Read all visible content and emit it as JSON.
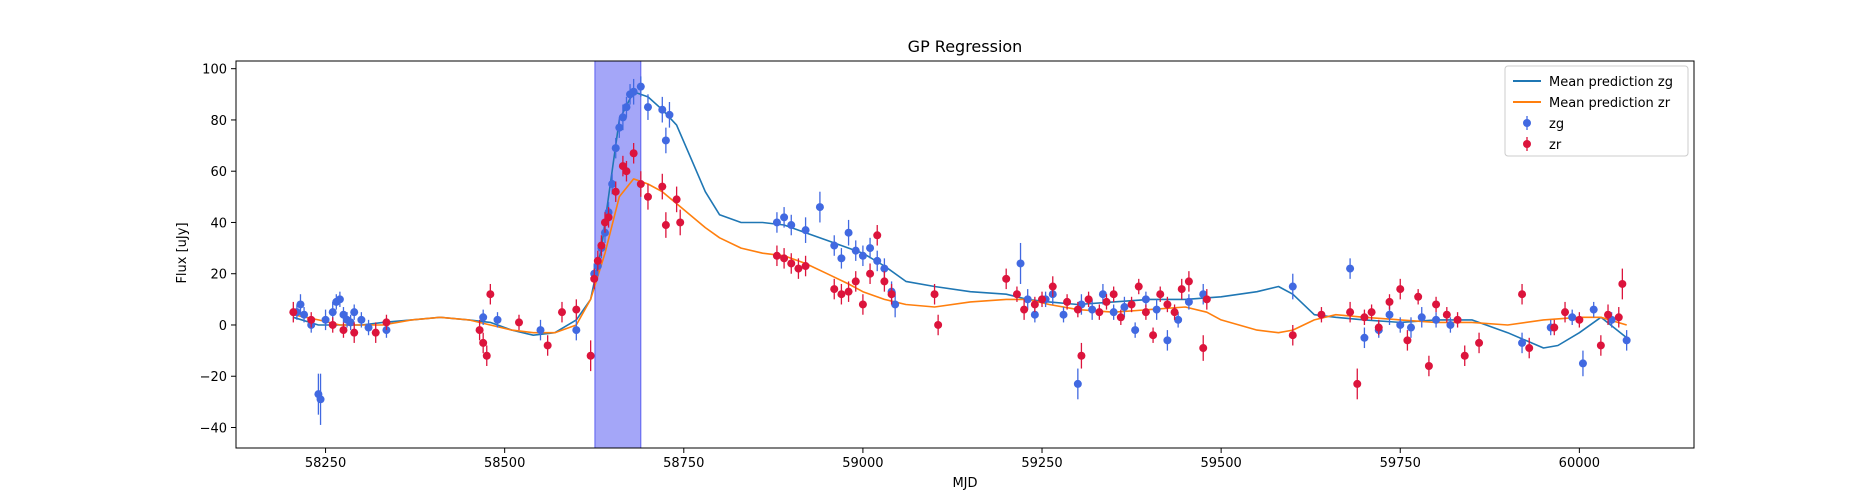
{
  "chart_data": {
    "type": "scatter",
    "title": "GP Regression",
    "xlabel": "MJD",
    "ylabel": "Flux [uJy]",
    "xlim": [
      58125,
      60160
    ],
    "ylim": [
      -48,
      103
    ],
    "grid": false,
    "legend_position": "top-right",
    "x_ticks": [
      58250,
      58500,
      58750,
      59000,
      59250,
      59500,
      59750,
      60000
    ],
    "y_ticks": [
      -40,
      -20,
      0,
      20,
      40,
      60,
      80,
      100
    ],
    "x_tick_labels": [
      "58250",
      "58500",
      "58750",
      "59000",
      "59250",
      "59500",
      "59750",
      "60000"
    ],
    "y_tick_labels": [
      "−40",
      "−20",
      "0",
      "20",
      "40",
      "60",
      "80",
      "100"
    ],
    "highlight_span": {
      "x0": 58626,
      "x1": 58690,
      "color": "#a4a6f8"
    },
    "lines": [
      {
        "name": "Mean prediction zg",
        "color": "#1f77b4",
        "x": [
          58205,
          58240,
          58270,
          58300,
          58330,
          58370,
          58410,
          58450,
          58480,
          58510,
          58540,
          58570,
          58600,
          58620,
          58635,
          58650,
          58660,
          58680,
          58700,
          58720,
          58740,
          58760,
          58780,
          58800,
          58830,
          58860,
          58890,
          58920,
          58950,
          58980,
          59000,
          59030,
          59060,
          59100,
          59150,
          59200,
          59230,
          59260,
          59300,
          59350,
          59400,
          59450,
          59500,
          59550,
          59580,
          59600,
          59630,
          59660,
          59700,
          59750,
          59800,
          59850,
          59900,
          59950,
          59970,
          60000,
          60030,
          60066
        ],
        "y": [
          3,
          0,
          0,
          0,
          1,
          2,
          3,
          2,
          1,
          -2,
          -4,
          -3,
          2,
          10,
          30,
          60,
          80,
          91,
          89,
          84,
          78,
          65,
          52,
          43,
          40,
          40,
          39,
          36,
          33,
          30,
          28,
          23,
          17,
          15,
          13,
          12,
          10,
          9,
          8,
          9,
          10,
          10,
          11,
          13,
          15,
          12,
          4,
          3,
          2,
          1,
          2,
          2,
          -3,
          -9,
          -8,
          -3,
          3,
          -5
        ]
      },
      {
        "name": "Mean prediction zr",
        "color": "#ff7f0e",
        "x": [
          58205,
          58240,
          58270,
          58300,
          58330,
          58370,
          58410,
          58450,
          58480,
          58510,
          58540,
          58570,
          58600,
          58620,
          58640,
          58660,
          58680,
          58700,
          58720,
          58750,
          58780,
          58800,
          58830,
          58860,
          58890,
          58920,
          58950,
          58980,
          59000,
          59030,
          59060,
          59100,
          59150,
          59200,
          59230,
          59260,
          59300,
          59350,
          59400,
          59450,
          59480,
          59500,
          59550,
          59580,
          59600,
          59630,
          59660,
          59700,
          59750,
          59800,
          59850,
          59900,
          59950,
          60000,
          60030,
          60066
        ],
        "y": [
          4,
          2,
          0,
          0,
          0,
          2,
          3,
          2,
          0,
          -2,
          -3,
          -3,
          0,
          10,
          28,
          50,
          57,
          55,
          52,
          45,
          38,
          34,
          30,
          28,
          27,
          24,
          20,
          16,
          13,
          10,
          8,
          7,
          9,
          10,
          10,
          8,
          6,
          5,
          6,
          7,
          5,
          2,
          -2,
          -3,
          -2,
          2,
          4,
          3,
          2,
          1,
          1,
          0,
          2,
          3,
          3,
          0
        ]
      }
    ],
    "series": [
      {
        "name": "zg",
        "color": "#4169e1",
        "points": [
          [
            58210,
            5,
            3
          ],
          [
            58215,
            8,
            4
          ],
          [
            58220,
            4,
            3
          ],
          [
            58230,
            0,
            3
          ],
          [
            58240,
            -27,
            8
          ],
          [
            58243,
            -29,
            10
          ],
          [
            58250,
            2,
            4
          ],
          [
            58260,
            5,
            4
          ],
          [
            58265,
            9,
            3
          ],
          [
            58270,
            10,
            3
          ],
          [
            58275,
            4,
            3
          ],
          [
            58280,
            2,
            3
          ],
          [
            58285,
            1,
            3
          ],
          [
            58290,
            5,
            3
          ],
          [
            58300,
            2,
            3
          ],
          [
            58310,
            -1,
            3
          ],
          [
            58335,
            -2,
            3
          ],
          [
            58470,
            3,
            3
          ],
          [
            58490,
            2,
            3
          ],
          [
            58550,
            -2,
            4
          ],
          [
            58600,
            -2,
            4
          ],
          [
            58625,
            20,
            4
          ],
          [
            58630,
            23,
            4
          ],
          [
            58635,
            30,
            4
          ],
          [
            58640,
            36,
            4
          ],
          [
            58645,
            44,
            4
          ],
          [
            58650,
            55,
            4
          ],
          [
            58655,
            69,
            4
          ],
          [
            58660,
            77,
            4
          ],
          [
            58665,
            81,
            5
          ],
          [
            58670,
            85,
            4
          ],
          [
            58675,
            90,
            4
          ],
          [
            58680,
            91,
            5
          ],
          [
            58690,
            93,
            4
          ],
          [
            58700,
            85,
            5
          ],
          [
            58720,
            84,
            5
          ],
          [
            58725,
            72,
            5
          ],
          [
            58730,
            82,
            5
          ],
          [
            58880,
            40,
            4
          ],
          [
            58890,
            42,
            4
          ],
          [
            58900,
            39,
            4
          ],
          [
            58920,
            37,
            5
          ],
          [
            58940,
            46,
            6
          ],
          [
            58960,
            31,
            4
          ],
          [
            58970,
            26,
            4
          ],
          [
            58980,
            36,
            5
          ],
          [
            58990,
            29,
            4
          ],
          [
            59000,
            27,
            4
          ],
          [
            59010,
            30,
            4
          ],
          [
            59020,
            25,
            4
          ],
          [
            59030,
            22,
            4
          ],
          [
            59040,
            13,
            4
          ],
          [
            59045,
            8,
            5
          ],
          [
            59220,
            24,
            8
          ],
          [
            59230,
            10,
            4
          ],
          [
            59240,
            4,
            3
          ],
          [
            59255,
            10,
            3
          ],
          [
            59265,
            12,
            4
          ],
          [
            59280,
            4,
            3
          ],
          [
            59300,
            -23,
            6
          ],
          [
            59305,
            8,
            4
          ],
          [
            59320,
            6,
            4
          ],
          [
            59335,
            12,
            4
          ],
          [
            59350,
            5,
            3
          ],
          [
            59365,
            7,
            4
          ],
          [
            59380,
            -2,
            3
          ],
          [
            59395,
            10,
            3
          ],
          [
            59410,
            6,
            4
          ],
          [
            59425,
            -6,
            4
          ],
          [
            59440,
            2,
            3
          ],
          [
            59455,
            9,
            3
          ],
          [
            59475,
            12,
            4
          ],
          [
            59600,
            15,
            5
          ],
          [
            59680,
            22,
            4
          ],
          [
            59700,
            -5,
            4
          ],
          [
            59720,
            -2,
            3
          ],
          [
            59735,
            4,
            4
          ],
          [
            59750,
            0,
            3
          ],
          [
            59765,
            -1,
            4
          ],
          [
            59780,
            3,
            4
          ],
          [
            59800,
            2,
            3
          ],
          [
            59820,
            0,
            3
          ],
          [
            59920,
            -7,
            4
          ],
          [
            59960,
            -1,
            3
          ],
          [
            59990,
            3,
            3
          ],
          [
            60005,
            -15,
            5
          ],
          [
            60020,
            6,
            3
          ],
          [
            60045,
            2,
            3
          ],
          [
            60066,
            -6,
            4
          ]
        ]
      },
      {
        "name": "zr",
        "color": "#dc143c",
        "points": [
          [
            58205,
            5,
            4
          ],
          [
            58230,
            2,
            3
          ],
          [
            58260,
            0,
            3
          ],
          [
            58275,
            -2,
            3
          ],
          [
            58290,
            -3,
            4
          ],
          [
            58320,
            -3,
            4
          ],
          [
            58335,
            1,
            3
          ],
          [
            58465,
            -2,
            4
          ],
          [
            58470,
            -7,
            4
          ],
          [
            58475,
            -12,
            4
          ],
          [
            58480,
            12,
            4
          ],
          [
            58520,
            1,
            3
          ],
          [
            58560,
            -8,
            4
          ],
          [
            58580,
            5,
            4
          ],
          [
            58600,
            6,
            4
          ],
          [
            58620,
            -12,
            6
          ],
          [
            58625,
            18,
            4
          ],
          [
            58630,
            25,
            4
          ],
          [
            58635,
            31,
            4
          ],
          [
            58640,
            40,
            4
          ],
          [
            58645,
            42,
            4
          ],
          [
            58655,
            52,
            4
          ],
          [
            58665,
            62,
            4
          ],
          [
            58670,
            60,
            4
          ],
          [
            58680,
            67,
            4
          ],
          [
            58690,
            55,
            5
          ],
          [
            58700,
            50,
            5
          ],
          [
            58720,
            54,
            5
          ],
          [
            58725,
            39,
            5
          ],
          [
            58740,
            49,
            5
          ],
          [
            58745,
            40,
            5
          ],
          [
            58880,
            27,
            4
          ],
          [
            58890,
            26,
            4
          ],
          [
            58900,
            24,
            4
          ],
          [
            58910,
            22,
            4
          ],
          [
            58920,
            23,
            4
          ],
          [
            58960,
            14,
            4
          ],
          [
            58970,
            12,
            4
          ],
          [
            58980,
            13,
            4
          ],
          [
            58990,
            17,
            4
          ],
          [
            59000,
            8,
            4
          ],
          [
            59010,
            20,
            4
          ],
          [
            59020,
            35,
            4
          ],
          [
            59030,
            17,
            4
          ],
          [
            59040,
            12,
            4
          ],
          [
            59100,
            12,
            4
          ],
          [
            59105,
            0,
            4
          ],
          [
            59200,
            18,
            4
          ],
          [
            59215,
            12,
            3
          ],
          [
            59225,
            6,
            4
          ],
          [
            59240,
            8,
            3
          ],
          [
            59250,
            10,
            3
          ],
          [
            59265,
            15,
            4
          ],
          [
            59285,
            9,
            3
          ],
          [
            59300,
            6,
            3
          ],
          [
            59305,
            -12,
            5
          ],
          [
            59315,
            10,
            3
          ],
          [
            59330,
            5,
            3
          ],
          [
            59340,
            9,
            3
          ],
          [
            59350,
            12,
            3
          ],
          [
            59360,
            3,
            3
          ],
          [
            59375,
            8,
            3
          ],
          [
            59385,
            15,
            3
          ],
          [
            59395,
            5,
            3
          ],
          [
            59405,
            -4,
            3
          ],
          [
            59415,
            12,
            3
          ],
          [
            59425,
            8,
            3
          ],
          [
            59435,
            5,
            3
          ],
          [
            59445,
            14,
            4
          ],
          [
            59455,
            17,
            4
          ],
          [
            59475,
            -9,
            5
          ],
          [
            59480,
            10,
            4
          ],
          [
            59600,
            -4,
            4
          ],
          [
            59640,
            4,
            3
          ],
          [
            59680,
            5,
            4
          ],
          [
            59690,
            -23,
            6
          ],
          [
            59700,
            3,
            3
          ],
          [
            59710,
            5,
            3
          ],
          [
            59720,
            -1,
            3
          ],
          [
            59735,
            9,
            3
          ],
          [
            59750,
            14,
            4
          ],
          [
            59760,
            -6,
            4
          ],
          [
            59775,
            11,
            3
          ],
          [
            59790,
            -16,
            4
          ],
          [
            59800,
            8,
            3
          ],
          [
            59815,
            4,
            3
          ],
          [
            59830,
            2,
            3
          ],
          [
            59840,
            -12,
            4
          ],
          [
            59860,
            -7,
            4
          ],
          [
            59920,
            12,
            4
          ],
          [
            59930,
            -9,
            4
          ],
          [
            59965,
            -1,
            3
          ],
          [
            59980,
            5,
            4
          ],
          [
            60000,
            2,
            3
          ],
          [
            60030,
            -8,
            4
          ],
          [
            60040,
            4,
            4
          ],
          [
            60055,
            3,
            4
          ],
          [
            60060,
            16,
            6
          ]
        ]
      }
    ]
  },
  "legend": {
    "items": [
      {
        "label": "Mean prediction zg",
        "kind": "line",
        "color": "#1f77b4"
      },
      {
        "label": "Mean prediction zr",
        "kind": "line",
        "color": "#ff7f0e"
      },
      {
        "label": "zg",
        "kind": "errorbar",
        "color": "#4169e1"
      },
      {
        "label": "zr",
        "kind": "errorbar",
        "color": "#dc143c"
      }
    ]
  }
}
